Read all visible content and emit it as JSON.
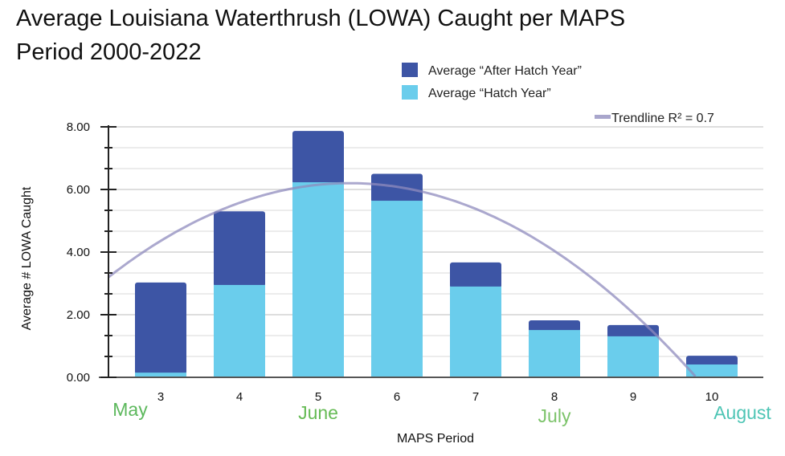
{
  "chart_data": {
    "type": "bar",
    "stacked": true,
    "title_lines": [
      "Average Louisiana Waterthrush (LOWA) Caught per MAPS",
      "Period 2000-2022"
    ],
    "xlabel": "MAPS Period",
    "ylabel": "Average # LOWA Caught",
    "ylim": [
      0,
      8
    ],
    "yticks": [
      "0.00",
      "2.00",
      "4.00",
      "6.00",
      "8.00"
    ],
    "ytick_values": [
      0,
      2,
      4,
      6,
      8
    ],
    "grid": true,
    "categories": [
      "3",
      "4",
      "5",
      "6",
      "7",
      "8",
      "9",
      "10"
    ],
    "series": [
      {
        "name": "Average “Hatch Year”",
        "color": "#6acdec",
        "values": [
          0.15,
          2.95,
          6.23,
          5.64,
          2.9,
          1.51,
          1.31,
          0.41
        ]
      },
      {
        "name": "Average “After Hatch Year”",
        "color": "#3d55a5",
        "values": [
          2.88,
          2.35,
          1.64,
          0.86,
          0.77,
          0.31,
          0.36,
          0.28
        ]
      }
    ],
    "totals": [
      3.03,
      5.3,
      7.87,
      6.5,
      3.67,
      1.82,
      1.67,
      0.69
    ],
    "trendline": {
      "label": "Trendline R² = 0.7",
      "type": "polynomial-2",
      "color": "#a9a6cc",
      "coefficients_desc": [
        -0.32,
        3.456,
        -3.131
      ],
      "x_domain": [
        2.34,
        10
      ]
    },
    "legend_position": "top-right",
    "annotations": [
      {
        "text": "May",
        "period": 3,
        "color": "#5cb85c"
      },
      {
        "text": "June",
        "period": 5,
        "color": "#66bb55"
      },
      {
        "text": "July",
        "period": 8,
        "color": "#7cc36a"
      },
      {
        "text": "August",
        "period": 10,
        "color": "#4ec5b5"
      }
    ]
  }
}
